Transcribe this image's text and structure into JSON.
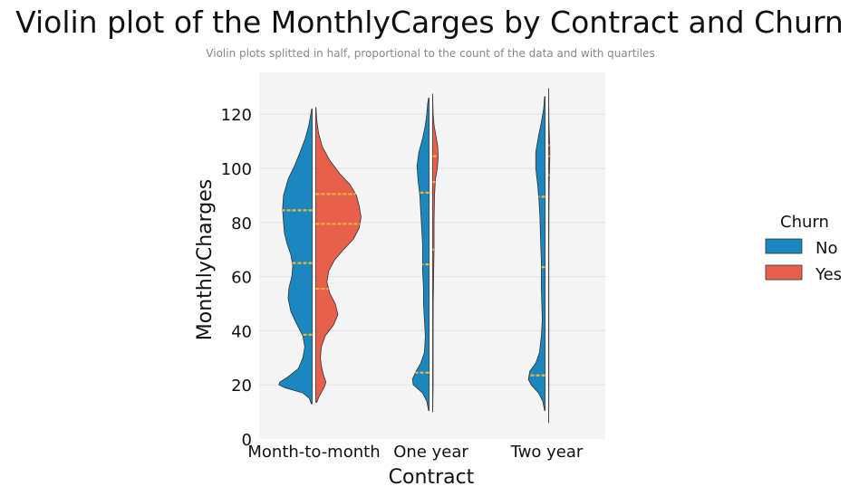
{
  "chart_data": {
    "type": "violin",
    "title": "Violin plot of the MonthlyCarges by Contract and Churn",
    "subtitle": "Violin plots splitted in half, proportional to the count of the data and with quartiles",
    "xlabel": "Contract",
    "ylabel": "MonthlyCharges",
    "categories": [
      "Month-to-month",
      "One year",
      "Two year"
    ],
    "ylim": [
      0,
      132
    ],
    "yticks": [
      0,
      20,
      40,
      60,
      80,
      100,
      120
    ],
    "grid": true,
    "legend": {
      "title": "Churn",
      "placement": "right"
    },
    "colors": {
      "No": "#1b87bf",
      "Yes": "#e8604c",
      "quartile": "#f0b33c",
      "panel": "#f4f4f4"
    },
    "series": [
      {
        "name": "No",
        "violins": [
          {
            "category": "Month-to-month",
            "min": 13,
            "max": 122,
            "quartiles": [
              38.5,
              65,
              84.5
            ],
            "profile": [
              [
                13,
                0.02
              ],
              [
                15,
                0.06
              ],
              [
                17,
                0.2
              ],
              [
                19,
                0.6
              ],
              [
                20,
                0.72
              ],
              [
                21,
                0.7
              ],
              [
                23,
                0.52
              ],
              [
                26,
                0.3
              ],
              [
                30,
                0.2
              ],
              [
                34,
                0.16
              ],
              [
                38,
                0.2
              ],
              [
                42,
                0.32
              ],
              [
                47,
                0.46
              ],
              [
                52,
                0.52
              ],
              [
                56,
                0.5
              ],
              [
                60,
                0.44
              ],
              [
                64,
                0.42
              ],
              [
                68,
                0.46
              ],
              [
                72,
                0.54
              ],
              [
                76,
                0.6
              ],
              [
                80,
                0.62
              ],
              [
                85,
                0.64
              ],
              [
                90,
                0.62
              ],
              [
                96,
                0.52
              ],
              [
                101,
                0.38
              ],
              [
                106,
                0.26
              ],
              [
                111,
                0.15
              ],
              [
                116,
                0.07
              ],
              [
                120,
                0.03
              ],
              [
                122,
                0.01
              ]
            ]
          },
          {
            "category": "One year",
            "min": 10.5,
            "max": 126,
            "quartiles": [
              24.5,
              64.5,
              91
            ],
            "profile": [
              [
                10.5,
                0.01
              ],
              [
                14,
                0.05
              ],
              [
                17,
                0.14
              ],
              [
                20,
                0.34
              ],
              [
                22,
                0.36
              ],
              [
                25,
                0.28
              ],
              [
                28,
                0.18
              ],
              [
                32,
                0.1
              ],
              [
                38,
                0.08
              ],
              [
                44,
                0.1
              ],
              [
                50,
                0.12
              ],
              [
                56,
                0.12
              ],
              [
                62,
                0.14
              ],
              [
                68,
                0.14
              ],
              [
                72,
                0.14
              ],
              [
                78,
                0.16
              ],
              [
                84,
                0.18
              ],
              [
                90,
                0.2
              ],
              [
                96,
                0.24
              ],
              [
                101,
                0.26
              ],
              [
                106,
                0.22
              ],
              [
                111,
                0.14
              ],
              [
                116,
                0.08
              ],
              [
                120,
                0.05
              ],
              [
                124,
                0.03
              ],
              [
                126,
                0.01
              ]
            ]
          },
          {
            "category": "Two year",
            "min": 10.5,
            "max": 126.5,
            "quartiles": [
              23.5,
              63.5,
              89.5
            ],
            "profile": [
              [
                10.5,
                0.01
              ],
              [
                14,
                0.05
              ],
              [
                17,
                0.14
              ],
              [
                20,
                0.3
              ],
              [
                22,
                0.36
              ],
              [
                25,
                0.33
              ],
              [
                28,
                0.2
              ],
              [
                32,
                0.12
              ],
              [
                38,
                0.08
              ],
              [
                44,
                0.06
              ],
              [
                50,
                0.07
              ],
              [
                56,
                0.08
              ],
              [
                62,
                0.08
              ],
              [
                66,
                0.08
              ],
              [
                70,
                0.09
              ],
              [
                76,
                0.1
              ],
              [
                82,
                0.11
              ],
              [
                88,
                0.13
              ],
              [
                94,
                0.16
              ],
              [
                100,
                0.2
              ],
              [
                106,
                0.2
              ],
              [
                112,
                0.14
              ],
              [
                117,
                0.08
              ],
              [
                122,
                0.03
              ],
              [
                126.5,
                0.01
              ]
            ]
          }
        ]
      },
      {
        "name": "Yes",
        "violins": [
          {
            "category": "Month-to-month",
            "min": 13.5,
            "max": 122.5,
            "quartiles": [
              55.5,
              79.5,
              90.5
            ],
            "profile": [
              [
                13.5,
                0.02
              ],
              [
                16,
                0.08
              ],
              [
                19,
                0.18
              ],
              [
                21,
                0.22
              ],
              [
                24,
                0.16
              ],
              [
                27,
                0.12
              ],
              [
                30,
                0.1
              ],
              [
                34,
                0.12
              ],
              [
                38,
                0.2
              ],
              [
                42,
                0.38
              ],
              [
                46,
                0.48
              ],
              [
                50,
                0.42
              ],
              [
                54,
                0.3
              ],
              [
                58,
                0.24
              ],
              [
                62,
                0.28
              ],
              [
                66,
                0.4
              ],
              [
                70,
                0.6
              ],
              [
                74,
                0.82
              ],
              [
                78,
                0.94
              ],
              [
                82,
                0.98
              ],
              [
                86,
                0.94
              ],
              [
                90,
                0.88
              ],
              [
                94,
                0.74
              ],
              [
                98,
                0.52
              ],
              [
                103,
                0.3
              ],
              [
                108,
                0.14
              ],
              [
                113,
                0.06
              ],
              [
                118,
                0.02
              ],
              [
                122.5,
                0.005
              ]
            ]
          },
          {
            "category": "One year",
            "min": 10,
            "max": 127.5,
            "quartiles": [
              70,
              95,
              104.5
            ],
            "profile": [
              [
                10,
                0.002
              ],
              [
                20,
                0.01
              ],
              [
                30,
                0.01
              ],
              [
                40,
                0.01
              ],
              [
                50,
                0.012
              ],
              [
                60,
                0.02
              ],
              [
                70,
                0.03
              ],
              [
                80,
                0.03
              ],
              [
                90,
                0.04
              ],
              [
                96,
                0.06
              ],
              [
                100,
                0.1
              ],
              [
                104,
                0.12
              ],
              [
                108,
                0.11
              ],
              [
                112,
                0.07
              ],
              [
                116,
                0.03
              ],
              [
                120,
                0.01
              ],
              [
                124,
                0.004
              ],
              [
                127.5,
                0.002
              ]
            ]
          },
          {
            "category": "Two year",
            "min": 6,
            "max": 129.5,
            "quartiles": [
              97.5,
              104.5,
              108.5
            ],
            "profile": [
              [
                6,
                0.002
              ],
              [
                20,
                0.005
              ],
              [
                40,
                0.005
              ],
              [
                60,
                0.005
              ],
              [
                80,
                0.006
              ],
              [
                95,
                0.012
              ],
              [
                100,
                0.02
              ],
              [
                104,
                0.025
              ],
              [
                108,
                0.025
              ],
              [
                112,
                0.015
              ],
              [
                118,
                0.006
              ],
              [
                124,
                0.003
              ],
              [
                129.5,
                0.002
              ]
            ]
          }
        ]
      }
    ]
  }
}
